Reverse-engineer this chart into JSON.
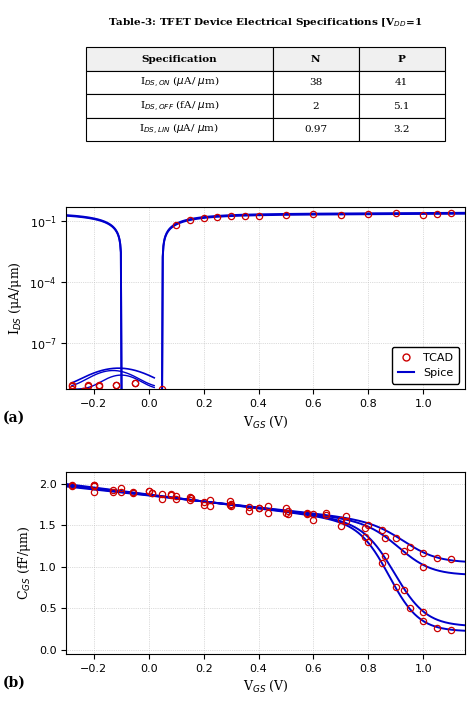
{
  "title_text": "Table-3: TFET Device Electrical Specifications [V$_{DD}$=1",
  "table_headers": [
    "Specification",
    "N",
    "P"
  ],
  "table_row0": [
    "I$_{DS,ON}$ (μA/ μm)",
    "38",
    "41"
  ],
  "table_row1": [
    "I$_{DS,OFF}$ (fA/ μm)",
    "2",
    "5.1"
  ],
  "table_row2": [
    "I$_{DS,LIN}$ (μA/ μm)",
    "0.97",
    "3.2"
  ],
  "spice_color": "#0000cc",
  "tcad_color": "#cc0000",
  "plot_bg": "#ffffff",
  "grid_color": "#bbbbbb",
  "xlabel": "V$_{GS}$ (V)",
  "ylabel_a": "I$_{DS}$ (μA/μm)",
  "ylabel_b": "C$_{GS}$ (fF/μm)",
  "label_a": "(a)",
  "label_b": "(b)",
  "xlim": [
    -0.3,
    1.15
  ],
  "xticks": [
    -0.2,
    0.0,
    0.2,
    0.4,
    0.6,
    0.8,
    1.0
  ],
  "ylim_a": [
    5e-10,
    0.5
  ],
  "ylim_b": [
    -0.05,
    2.15
  ],
  "yticks_b": [
    0,
    0.5,
    1.0,
    1.5,
    2.0
  ]
}
